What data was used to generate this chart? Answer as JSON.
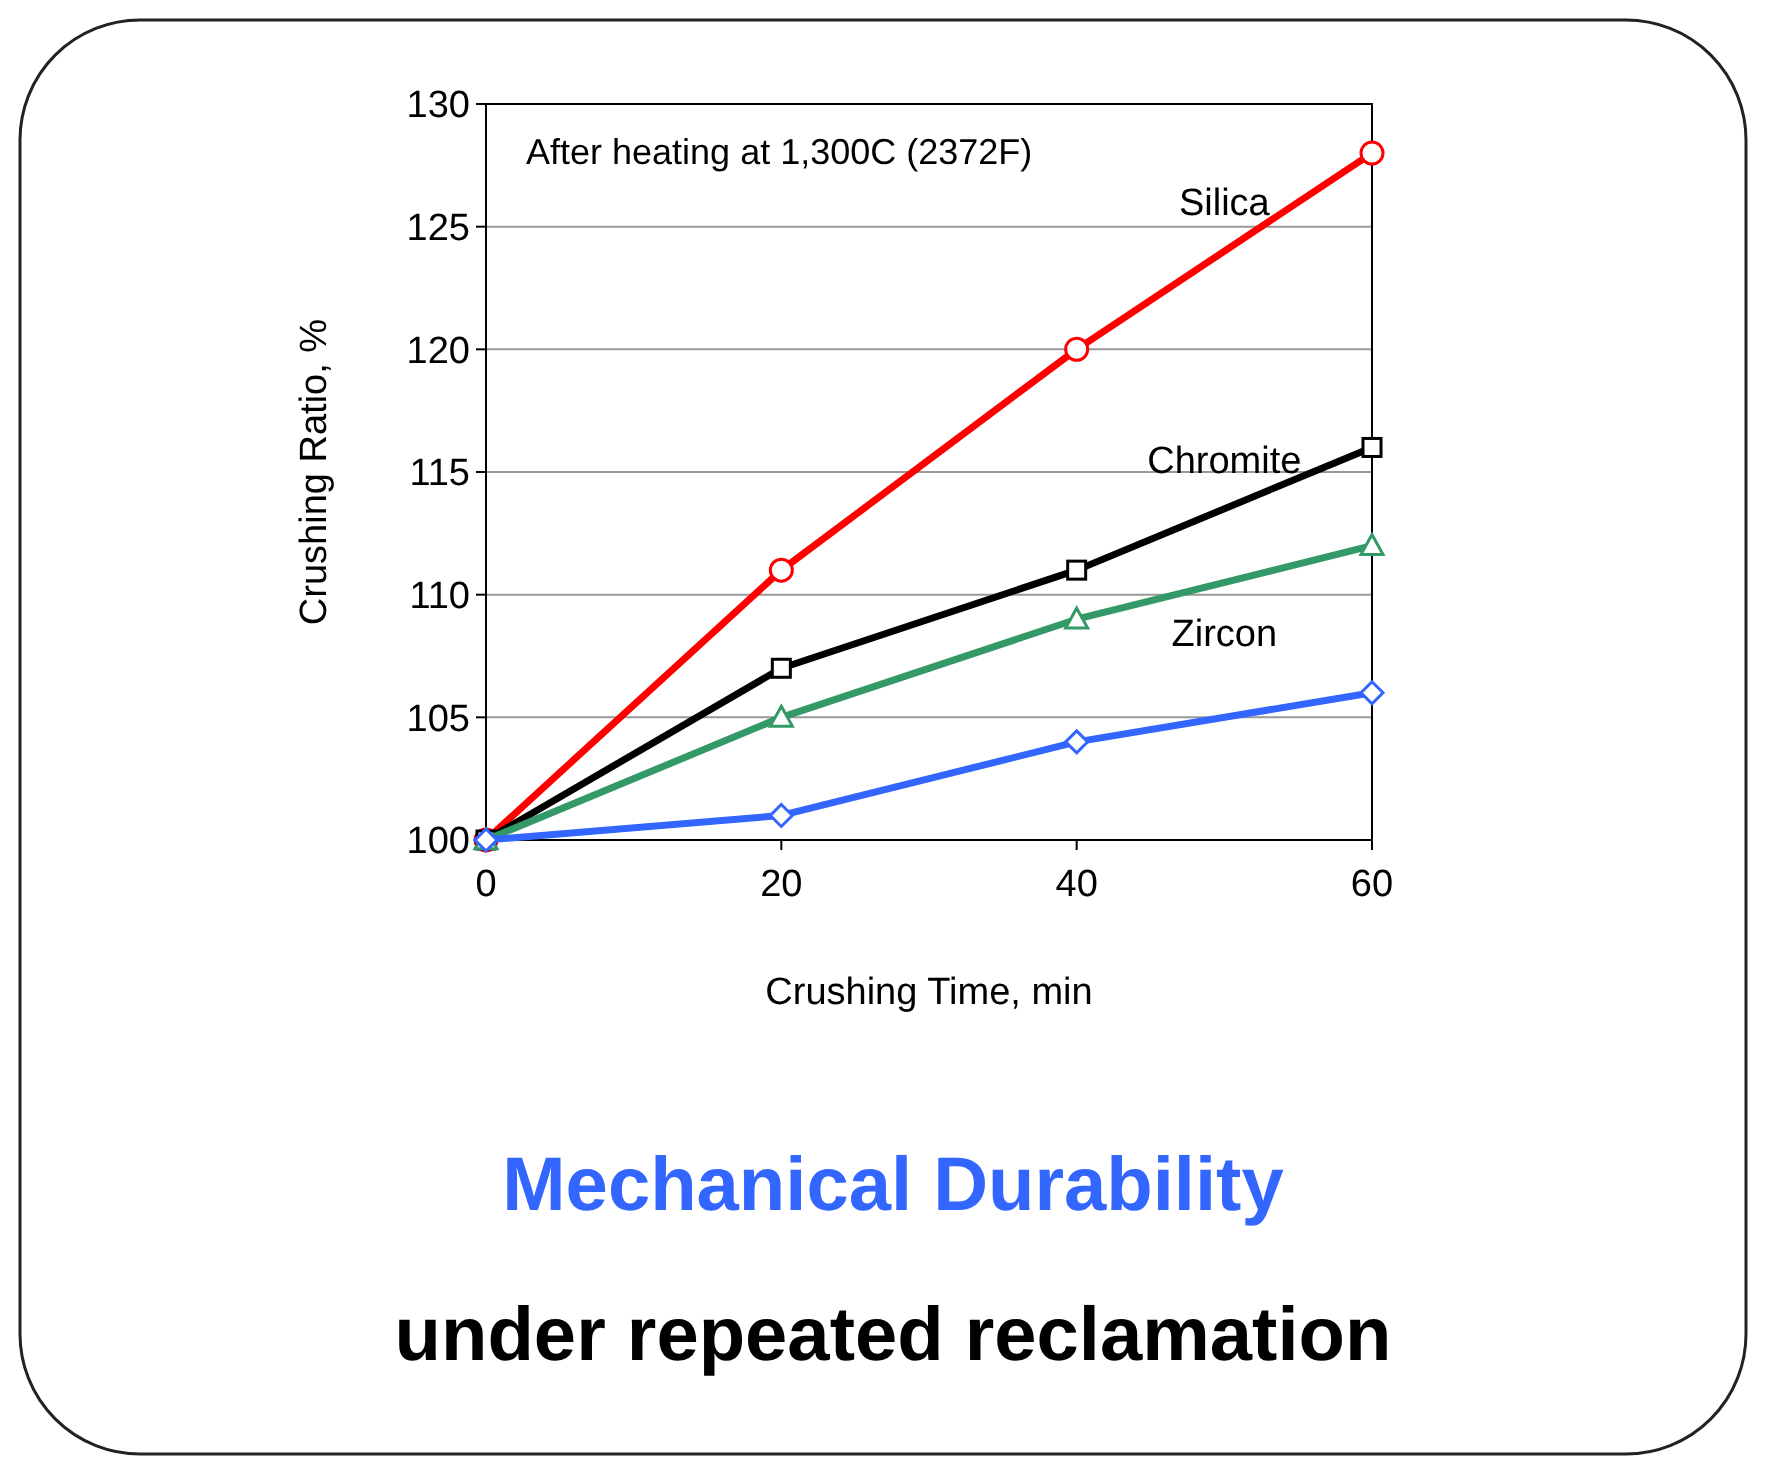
{
  "chart_data": {
    "type": "line",
    "title": "Mechanical Durability",
    "subtitle": "under repeated reclamation",
    "xlabel": "Crushing Time, min",
    "ylabel": "Crushing Ratio, %",
    "annotations": [
      "After heating at 1,300C (2372F)"
    ],
    "x": [
      0,
      20,
      40,
      60
    ],
    "xlim": [
      0,
      60
    ],
    "xticks": [
      0,
      20,
      40,
      60
    ],
    "ylim": [
      100,
      130
    ],
    "yticks": [
      100,
      105,
      110,
      115,
      120,
      125,
      130
    ],
    "grid": "y",
    "line_style": "solid",
    "series": [
      {
        "name": "Silica",
        "color": "#ff0000",
        "marker": "circle",
        "values": [
          100,
          111,
          120,
          128
        ]
      },
      {
        "name": "Chromite",
        "color": "#000000",
        "marker": "square",
        "values": [
          100,
          107,
          111,
          116
        ]
      },
      {
        "name": "Zircon",
        "color": "#339966",
        "marker": "triangle",
        "values": [
          100,
          105,
          109,
          112
        ]
      },
      {
        "color": "#3366ff",
        "marker": "diamond",
        "values": [
          100,
          101,
          104,
          106
        ]
      }
    ]
  }
}
